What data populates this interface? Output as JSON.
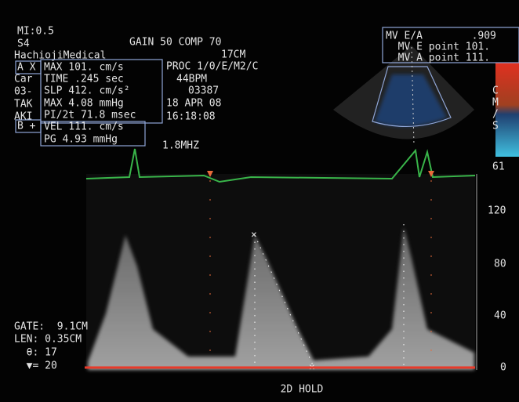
{
  "header": {
    "mi": "MI:0.5",
    "probe": "S4",
    "hospital": "HachiojiMedical",
    "gain": "GAIN 50 COMP 70",
    "depth": "17CM",
    "proc": "PROC 1/0/E/M2/C",
    "hr": "44BPM",
    "id": "03387",
    "date": "18 APR 08",
    "time": "16:18:08",
    "freq": "1.8MHZ",
    "side_labels": [
      "Car",
      "03-",
      "TAK",
      "AKI"
    ]
  },
  "measurements": {
    "a_label": "A X",
    "a_rows": [
      "MAX 101. cm/s",
      "TIME .245 sec",
      "SLP 412. cm/s²",
      "MAX  4.08 mmHg",
      "PI/2t 71.8 msec"
    ],
    "b_label": "B +",
    "b_rows": [
      "VEL 111. cm/s",
      "PG 4.93 mmHg"
    ]
  },
  "mv_panel": {
    "rows": [
      "MV E/A        .909",
      "  MV E point 101.",
      "  MV A point 111."
    ]
  },
  "color_bar": {
    "labels": [
      "C",
      "M",
      "/",
      "S"
    ],
    "top": "61"
  },
  "velocity_scale": [
    "120",
    "80",
    "40",
    "0"
  ],
  "gate_info": [
    "GATE:  9.1CM",
    "LEN: 0.35CM",
    "  θ: 17",
    "  ▼= 20"
  ],
  "mode": "2D HOLD"
}
